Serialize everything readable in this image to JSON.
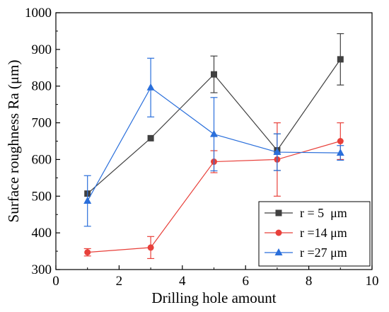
{
  "chart_data": {
    "type": "line",
    "xlabel": "Drilling hole amount",
    "ylabel": "Surface roughness Ra (μm)",
    "xlim": [
      0,
      10
    ],
    "ylim": [
      300,
      1000
    ],
    "xticks": [
      0,
      2,
      4,
      6,
      8,
      10
    ],
    "yticks": [
      300,
      400,
      500,
      600,
      700,
      800,
      900,
      1000
    ],
    "x_tick_labels": [
      "0",
      "2",
      "4",
      "6",
      "8",
      "10"
    ],
    "y_tick_labels": [
      "300",
      "400",
      "500",
      "600",
      "700",
      "800",
      "900",
      "1000"
    ],
    "grid": false,
    "legend_position": "bottom-right",
    "series": [
      {
        "name": "r = 5  μm",
        "color": "#404040",
        "marker": "square",
        "x": [
          1,
          3,
          5,
          7,
          9
        ],
        "y": [
          507,
          658,
          832,
          625,
          873
        ],
        "err_low": [
          null,
          null,
          782,
          570,
          803
        ],
        "err_high": [
          null,
          null,
          882,
          670,
          943
        ]
      },
      {
        "name": "r =14 μm",
        "color": "#e8403a",
        "marker": "circle",
        "x": [
          1,
          3,
          5,
          7,
          9
        ],
        "y": [
          347,
          360,
          594,
          600,
          650
        ],
        "err_low": [
          337,
          330,
          564,
          500,
          600
        ],
        "err_high": [
          357,
          390,
          624,
          700,
          700
        ]
      },
      {
        "name": "r =27 μm",
        "color": "#2a6fdb",
        "marker": "triangle",
        "x": [
          1,
          3,
          5,
          7,
          9
        ],
        "y": [
          487,
          796,
          669,
          620,
          618
        ],
        "err_low": [
          418,
          716,
          569,
          570,
          598
        ],
        "err_high": [
          556,
          876,
          769,
          670,
          638
        ]
      }
    ]
  }
}
